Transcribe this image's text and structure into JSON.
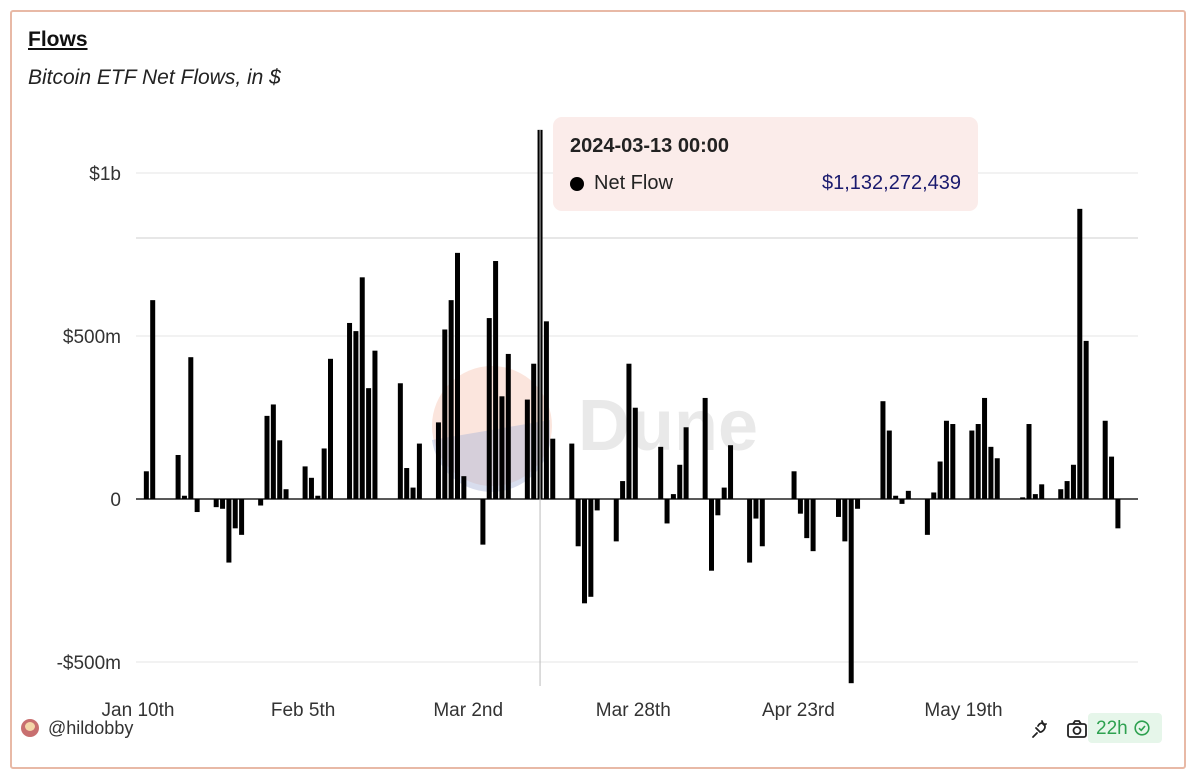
{
  "header": {
    "title": "Flows",
    "subtitle": "Bitcoin ETF Net Flows, in $"
  },
  "tooltip": {
    "date": "2024-03-13 00:00",
    "series_name": "Net Flow",
    "value": "$1,132,272,439"
  },
  "watermark": {
    "text": "Dune"
  },
  "footer": {
    "username": "@hildobby",
    "badge_text": "22h",
    "icons": [
      "share-icon",
      "camera-icon",
      "check-circle-icon"
    ]
  },
  "colors": {
    "bar": "#000000",
    "border": "#e8b9a6",
    "tooltip_bg": "#fbecea",
    "tooltip_value": "#1a1a6e",
    "badge_bg": "#e6f6ea",
    "badge_text": "#2ea150"
  },
  "chart_data": {
    "type": "bar",
    "title": "Flows",
    "subtitle": "Bitcoin ETF Net Flows, in $",
    "xlabel": "",
    "ylabel": "",
    "y_unit": "USD",
    "ylim": [
      -570000000,
      1150000000
    ],
    "y_ticks": [
      {
        "value": 1000000000,
        "label": "$1b"
      },
      {
        "value": 500000000,
        "label": "$500m"
      },
      {
        "value": 0,
        "label": "0"
      },
      {
        "value": -500000000,
        "label": "-$500m"
      }
    ],
    "x_ticks": [
      {
        "date": "2024-01-10",
        "label": "Jan 10th"
      },
      {
        "date": "2024-02-05",
        "label": "Feb 5th"
      },
      {
        "date": "2024-03-02",
        "label": "Mar 2nd"
      },
      {
        "date": "2024-03-28",
        "label": "Mar 28th"
      },
      {
        "date": "2024-04-23",
        "label": "Apr 23rd"
      },
      {
        "date": "2024-05-19",
        "label": "May 19th"
      }
    ],
    "x_start": "2024-01-10",
    "highlight_date": "2024-03-13",
    "grid": "horizontal",
    "series": [
      {
        "name": "Net Flow",
        "points": [
          [
            "2024-01-11",
            85000000
          ],
          [
            "2024-01-12",
            610000000
          ],
          [
            "2024-01-16",
            135000000
          ],
          [
            "2024-01-17",
            10000000
          ],
          [
            "2024-01-18",
            435000000
          ],
          [
            "2024-01-19",
            -40000000
          ],
          [
            "2024-01-22",
            -25000000
          ],
          [
            "2024-01-23",
            -30000000
          ],
          [
            "2024-01-24",
            -195000000
          ],
          [
            "2024-01-25",
            -90000000
          ],
          [
            "2024-01-26",
            -110000000
          ],
          [
            "2024-01-29",
            -20000000
          ],
          [
            "2024-01-30",
            255000000
          ],
          [
            "2024-01-31",
            290000000
          ],
          [
            "2024-02-01",
            180000000
          ],
          [
            "2024-02-02",
            30000000
          ],
          [
            "2024-02-05",
            100000000
          ],
          [
            "2024-02-06",
            65000000
          ],
          [
            "2024-02-07",
            10000000
          ],
          [
            "2024-02-08",
            155000000
          ],
          [
            "2024-02-09",
            430000000
          ],
          [
            "2024-02-12",
            540000000
          ],
          [
            "2024-02-13",
            515000000
          ],
          [
            "2024-02-14",
            680000000
          ],
          [
            "2024-02-15",
            340000000
          ],
          [
            "2024-02-16",
            455000000
          ],
          [
            "2024-02-20",
            355000000
          ],
          [
            "2024-02-21",
            95000000
          ],
          [
            "2024-02-22",
            35000000
          ],
          [
            "2024-02-23",
            170000000
          ],
          [
            "2024-02-26",
            235000000
          ],
          [
            "2024-02-27",
            520000000
          ],
          [
            "2024-02-28",
            610000000
          ],
          [
            "2024-02-29",
            755000000
          ],
          [
            "2024-03-01",
            70000000
          ],
          [
            "2024-03-04",
            -140000000
          ],
          [
            "2024-03-05",
            555000000
          ],
          [
            "2024-03-06",
            730000000
          ],
          [
            "2024-03-07",
            315000000
          ],
          [
            "2024-03-08",
            445000000
          ],
          [
            "2024-03-11",
            305000000
          ],
          [
            "2024-03-12",
            415000000
          ],
          [
            "2024-03-13",
            1132272439
          ],
          [
            "2024-03-14",
            545000000
          ],
          [
            "2024-03-15",
            185000000
          ],
          [
            "2024-03-18",
            170000000
          ],
          [
            "2024-03-19",
            -145000000
          ],
          [
            "2024-03-20",
            -320000000
          ],
          [
            "2024-03-21",
            -300000000
          ],
          [
            "2024-03-22",
            -35000000
          ],
          [
            "2024-03-25",
            -130000000
          ],
          [
            "2024-03-26",
            55000000
          ],
          [
            "2024-03-27",
            415000000
          ],
          [
            "2024-03-28",
            280000000
          ],
          [
            "2024-04-01",
            160000000
          ],
          [
            "2024-04-02",
            -75000000
          ],
          [
            "2024-04-03",
            15000000
          ],
          [
            "2024-04-04",
            105000000
          ],
          [
            "2024-04-05",
            220000000
          ],
          [
            "2024-04-08",
            310000000
          ],
          [
            "2024-04-09",
            -220000000
          ],
          [
            "2024-04-10",
            -50000000
          ],
          [
            "2024-04-11",
            35000000
          ],
          [
            "2024-04-12",
            165000000
          ],
          [
            "2024-04-15",
            -195000000
          ],
          [
            "2024-04-16",
            -60000000
          ],
          [
            "2024-04-17",
            -145000000
          ],
          [
            "2024-04-22",
            85000000
          ],
          [
            "2024-04-23",
            -45000000
          ],
          [
            "2024-04-24",
            -120000000
          ],
          [
            "2024-04-25",
            -160000000
          ],
          [
            "2024-04-29",
            -55000000
          ],
          [
            "2024-04-30",
            -130000000
          ],
          [
            "2024-05-01",
            -565000000
          ],
          [
            "2024-05-02",
            -30000000
          ],
          [
            "2024-05-06",
            300000000
          ],
          [
            "2024-05-07",
            210000000
          ],
          [
            "2024-05-08",
            10000000
          ],
          [
            "2024-05-09",
            -15000000
          ],
          [
            "2024-05-10",
            25000000
          ],
          [
            "2024-05-13",
            -110000000
          ],
          [
            "2024-05-14",
            20000000
          ],
          [
            "2024-05-15",
            115000000
          ],
          [
            "2024-05-16",
            240000000
          ],
          [
            "2024-05-17",
            230000000
          ],
          [
            "2024-05-20",
            210000000
          ],
          [
            "2024-05-21",
            230000000
          ],
          [
            "2024-05-22",
            310000000
          ],
          [
            "2024-05-23",
            160000000
          ],
          [
            "2024-05-24",
            125000000
          ],
          [
            "2024-05-28",
            5000000
          ],
          [
            "2024-05-29",
            230000000
          ],
          [
            "2024-05-30",
            15000000
          ],
          [
            "2024-05-31",
            45000000
          ],
          [
            "2024-06-03",
            30000000
          ],
          [
            "2024-06-04",
            55000000
          ],
          [
            "2024-06-05",
            105000000
          ],
          [
            "2024-06-06",
            890000000
          ],
          [
            "2024-06-07",
            485000000
          ],
          [
            "2024-06-10",
            240000000
          ],
          [
            "2024-06-11",
            130000000
          ],
          [
            "2024-06-12",
            -90000000
          ]
        ]
      }
    ]
  }
}
